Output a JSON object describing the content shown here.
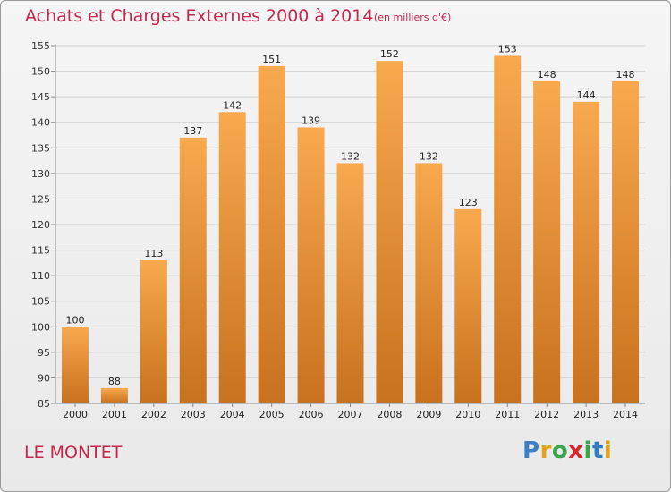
{
  "title": "Achats et Charges Externes 2000 à 2014",
  "subtitle": "(en milliers d'€)",
  "commune": "LE MONTET",
  "logo": {
    "letters": [
      "P",
      "r",
      "o",
      "x",
      "i",
      "t",
      "i"
    ],
    "colors": [
      "#3a7fc4",
      "#e2a21b",
      "#3aa54a",
      "#d8262e",
      "#3aa54a",
      "#2a7fc4",
      "#e2a21b"
    ]
  },
  "colors": {
    "bar_light": "#f8a94e",
    "bar_dark": "#c8711f",
    "title": "#c8254a",
    "grid": "#d0d0d0"
  },
  "chart_data": {
    "type": "bar",
    "title": "Achats et Charges Externes 2000 à 2014",
    "subtitle": "(en milliers d'€)",
    "xlabel": "",
    "ylabel": "",
    "categories": [
      "2000",
      "2001",
      "2002",
      "2003",
      "2004",
      "2005",
      "2006",
      "2007",
      "2008",
      "2009",
      "2010",
      "2011",
      "2012",
      "2013",
      "2014"
    ],
    "values": [
      100,
      88,
      113,
      137,
      142,
      151,
      139,
      132,
      152,
      132,
      123,
      153,
      148,
      144,
      148
    ],
    "ylim": [
      85,
      155
    ],
    "yticks": [
      85,
      90,
      95,
      100,
      105,
      110,
      115,
      120,
      125,
      130,
      135,
      140,
      145,
      150,
      155
    ],
    "grid": true,
    "data_labels": true
  }
}
